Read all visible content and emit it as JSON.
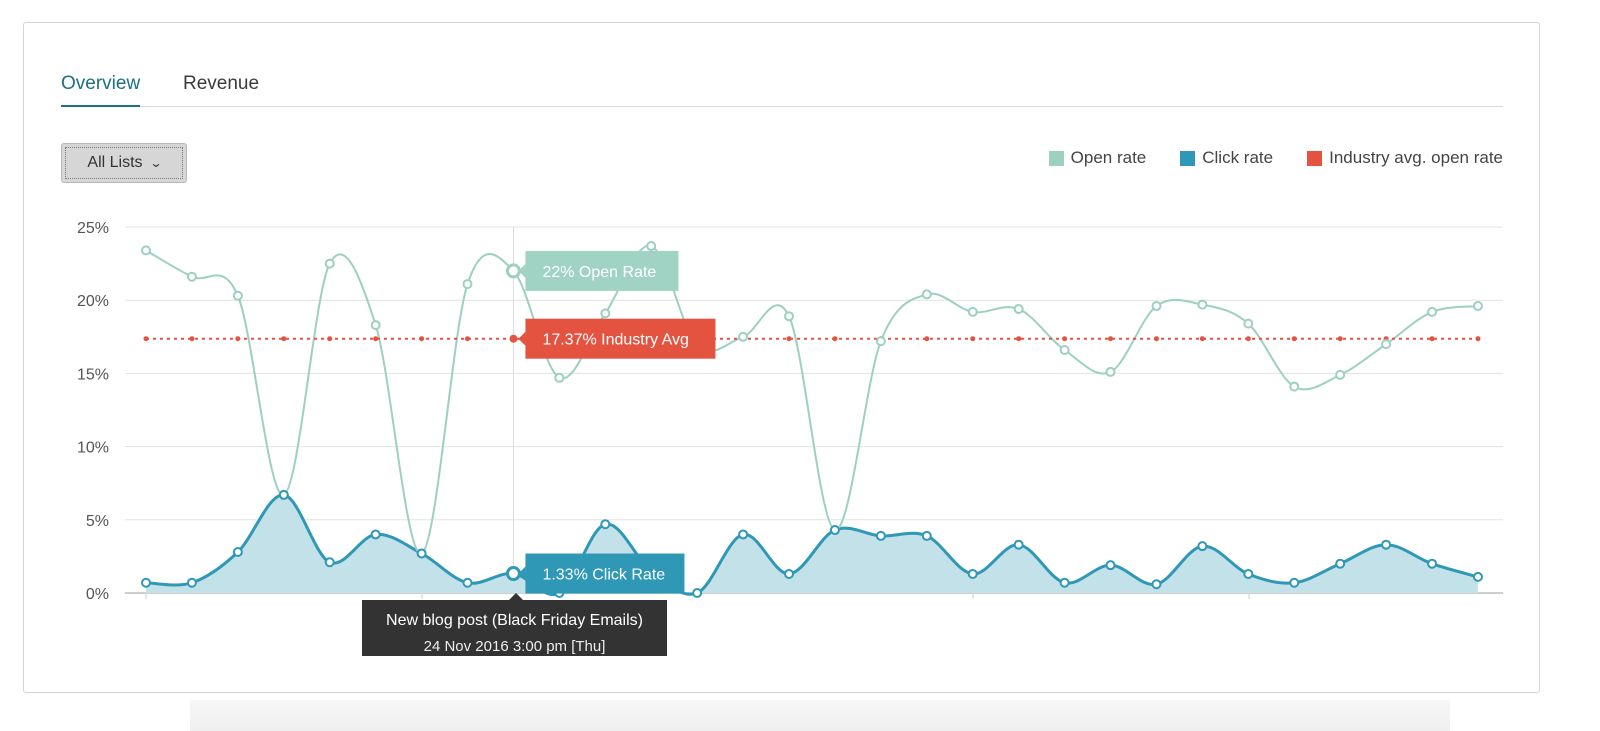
{
  "tabs": [
    {
      "label": "Overview"
    },
    {
      "label": "Revenue"
    }
  ],
  "filter": {
    "selected": "All Lists",
    "icon": "chevron-down-icon"
  },
  "colors": {
    "open_rate": "#9cd0c1",
    "open_rate_label_bg": "#a1d3c5",
    "click_rate": "#2e98b6",
    "click_rate_fill": "#c3e1e8",
    "industry": "#e4533f",
    "tooltip_bg": "#333333"
  },
  "chart_data": {
    "type": "line",
    "ylim": [
      0,
      25
    ],
    "yticks": [
      "0%",
      "5%",
      "10%",
      "15%",
      "20%",
      "25%"
    ],
    "legend_position": "top-right",
    "grid": true,
    "series": [
      {
        "name": "Open rate",
        "values": [
          23.4,
          21.6,
          20.3,
          6.7,
          22.5,
          18.3,
          2.7,
          21.1,
          22.0,
          14.7,
          19.1,
          23.7,
          16.9,
          17.5,
          18.9,
          4.3,
          17.2,
          20.4,
          19.2,
          19.4,
          16.6,
          15.1,
          19.6,
          19.7,
          18.4,
          14.1,
          14.9,
          17.0,
          19.2,
          19.6
        ]
      },
      {
        "name": "Click rate",
        "values": [
          0.7,
          0.7,
          2.8,
          6.7,
          2.1,
          4.0,
          2.7,
          0.7,
          1.33,
          0.0,
          4.7,
          1.5,
          0.0,
          4.0,
          1.3,
          4.3,
          3.9,
          3.9,
          1.3,
          3.3,
          0.7,
          1.9,
          0.6,
          3.2,
          1.3,
          0.7,
          2.0,
          3.3,
          2.0,
          1.1
        ]
      },
      {
        "name": "Industry avg. open rate",
        "values": [
          17.37,
          17.37,
          17.37,
          17.37,
          17.37,
          17.37,
          17.37,
          17.37,
          17.37,
          17.37,
          17.37,
          17.37,
          17.37,
          17.37,
          17.37,
          17.37,
          17.37,
          17.37,
          17.37,
          17.37,
          17.37,
          17.37,
          17.37,
          17.37,
          17.37,
          17.37,
          17.37,
          17.37,
          17.37,
          17.37
        ]
      }
    ],
    "highlight_index": 8,
    "callouts": {
      "open": "22% Open Rate",
      "industry": "17.37% Industry Avg",
      "click": "1.33% Click Rate"
    },
    "tooltip": {
      "line1": "New blog post (Black Friday Emails)",
      "line2": "24 Nov 2016 3:00 pm [Thu]"
    }
  }
}
